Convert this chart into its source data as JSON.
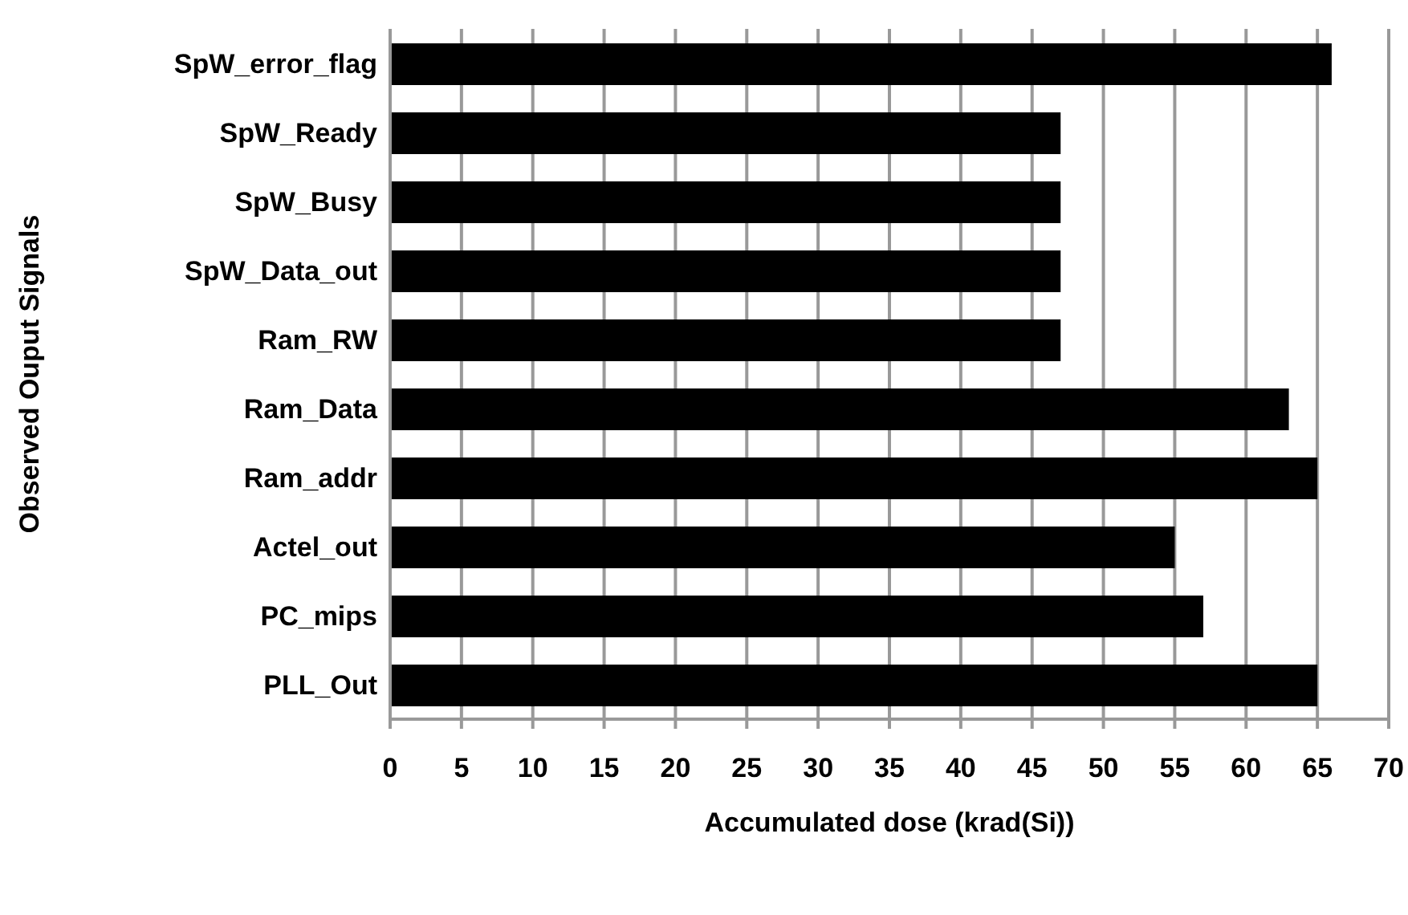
{
  "chart_data": {
    "type": "bar",
    "orientation": "horizontal",
    "xlabel": "Accumulated dose (krad(Si))",
    "ylabel": "Observed Ouput Signals",
    "categories": [
      "SpW_error_flag",
      "SpW_Ready",
      "SpW_Busy",
      "SpW_Data_out",
      "Ram_RW",
      "Ram_Data",
      "Ram_addr",
      "Actel_out",
      "PC_mips",
      "PLL_Out"
    ],
    "values": [
      66,
      47,
      47,
      47,
      47,
      63,
      65,
      55,
      57,
      65
    ],
    "color": "#000000",
    "xlim": [
      0,
      70
    ],
    "xticks": [
      0,
      5,
      10,
      15,
      20,
      25,
      30,
      35,
      40,
      45,
      50,
      55,
      60,
      65,
      70
    ],
    "grid": "x"
  }
}
